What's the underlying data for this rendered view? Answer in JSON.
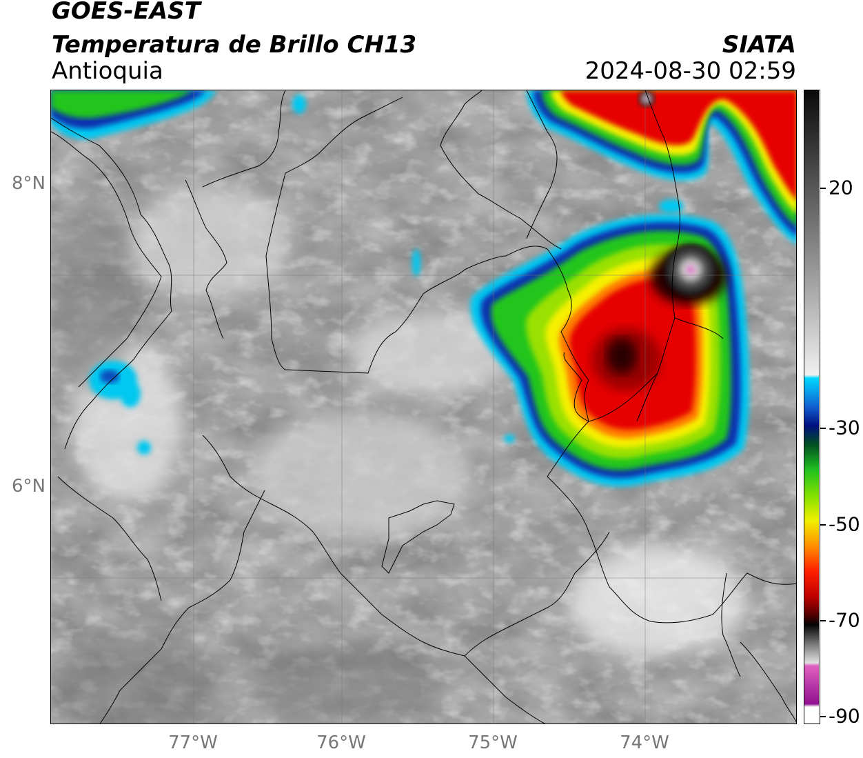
{
  "header": {
    "satellite": "GOES-EAST",
    "product": "Temperatura de Brillo CH13",
    "region": "Antioquia",
    "agency": "SIATA",
    "datetime": "2024-08-30 02:59"
  },
  "map": {
    "lat_labels": [
      "8°N",
      "6°N"
    ],
    "lon_labels": [
      "77°W",
      "76°W",
      "75°W",
      "74°W"
    ],
    "gridlines": true
  },
  "colorbar": {
    "tick_labels": [
      "20",
      "-30",
      "-50",
      "-70",
      "-90"
    ],
    "units_hint": "°C"
  },
  "colors": {
    "background_gray": "#9a9a9a",
    "cloud_white": "#e6e6e6",
    "cold_green": "#22c51e",
    "cold_yellow": "#f6f000",
    "cold_red": "#e60000",
    "core_black": "#111111",
    "overshoot_magenta": "#e040c0",
    "edge_blue": "#1030b0",
    "edge_cyan": "#00c8f0"
  }
}
